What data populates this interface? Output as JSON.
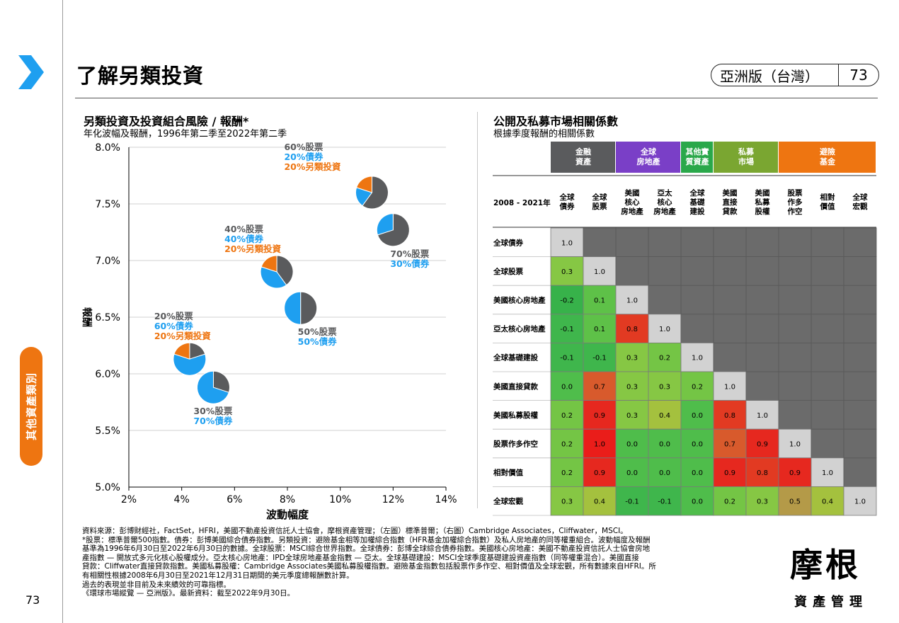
{
  "header": {
    "title": "了解另類投資",
    "edition": "亞洲版（台灣）",
    "page_number": "73"
  },
  "side_tab": {
    "label": "其他資產類別"
  },
  "footer": {
    "page_number": "73"
  },
  "left_section": {
    "title": "另類投資及投資組合風險 / 報酬*",
    "subtitle": "年化波幅及報酬，1996年第二季至2022年第二季"
  },
  "right_section": {
    "title": "公開及私募市場相關係數",
    "subtitle": "根據季度報酬的相關係數"
  },
  "colors": {
    "stock": "#5a5b5d",
    "bond": "#1e9ff0",
    "alt": "#ee7511",
    "accent": "#1e9ff0",
    "group_fin": "#5a5b5d",
    "group_re": "#7a3fc7",
    "group_other": "#2aa84a",
    "group_pm": "#7aa631",
    "group_hf": "#ee7511"
  },
  "chart_data": [
    {
      "type": "scatter",
      "xlabel": "波動幅度",
      "ylabel": "報酬",
      "xlim": [
        2,
        14
      ],
      "ylim": [
        5.0,
        8.0
      ],
      "x_ticks": [
        "2%",
        "4%",
        "6%",
        "8%",
        "10%",
        "12%",
        "14%"
      ],
      "y_ticks": [
        "5.0%",
        "5.5%",
        "6.0%",
        "6.5%",
        "7.0%",
        "7.5%",
        "8.0%"
      ],
      "grid": "horizontal",
      "points": [
        {
          "x": 11.2,
          "y": 7.6,
          "stock": 60,
          "bond": 20,
          "alt": 20,
          "labels": [
            "60%股票",
            "20%債券",
            "20%另類投資"
          ],
          "label_pos": "upper-left"
        },
        {
          "x": 12.0,
          "y": 7.27,
          "stock": 70,
          "bond": 30,
          "alt": 0,
          "labels": [
            "70%股票",
            "30%債券"
          ],
          "label_pos": "lower-right"
        },
        {
          "x": 7.6,
          "y": 6.9,
          "stock": 40,
          "bond": 40,
          "alt": 20,
          "labels": [
            "40%股票",
            "40%債券",
            "20%另類投資"
          ],
          "label_pos": "upper-left"
        },
        {
          "x": 8.5,
          "y": 6.58,
          "stock": 50,
          "bond": 50,
          "alt": 0,
          "labels": [
            "50%股票",
            "50%債券"
          ],
          "label_pos": "lower-right"
        },
        {
          "x": 4.3,
          "y": 6.13,
          "stock": 20,
          "bond": 60,
          "alt": 20,
          "labels": [
            "20%股票",
            "60%債券",
            "20%另類投資"
          ],
          "label_pos": "upper-left"
        },
        {
          "x": 5.2,
          "y": 5.88,
          "stock": 30,
          "bond": 70,
          "alt": 0,
          "labels": [
            "30%股票",
            "70%債券"
          ],
          "label_pos": "below"
        }
      ]
    },
    {
      "type": "heatmap",
      "period_label": "2008 - 2021年",
      "groups": [
        {
          "label": [
            "金融",
            "資產"
          ],
          "span": 2,
          "color": "#5a5b5d"
        },
        {
          "label": [
            "全球",
            "房地產"
          ],
          "span": 2,
          "color": "#7a3fc7"
        },
        {
          "label": [
            "其他實",
            "質資產"
          ],
          "span": 1,
          "color": "#2aa84a"
        },
        {
          "label": [
            "私募",
            "市場"
          ],
          "span": 2,
          "color": "#7aa631"
        },
        {
          "label": [
            "避險",
            "基金"
          ],
          "span": 3,
          "color": "#ee7511"
        }
      ],
      "col_labels": [
        [
          "全球",
          "債券"
        ],
        [
          "全球",
          "股票"
        ],
        [
          "美國",
          "核心",
          "房地產"
        ],
        [
          "亞太",
          "核心",
          "房地產"
        ],
        [
          "全球",
          "基礎",
          "建設"
        ],
        [
          "美國",
          "直接",
          "貸款"
        ],
        [
          "美國",
          "私募",
          "股權"
        ],
        [
          "股票",
          "作多",
          "作空"
        ],
        [
          "相對",
          "價值"
        ],
        [
          "全球",
          "宏觀"
        ]
      ],
      "row_labels": [
        "全球債券",
        "全球股票",
        "美國核心房地產",
        "亞太核心房地產",
        "全球基礎建設",
        "美國直接貸款",
        "美國私募股權",
        "股票作多作空",
        "相對價值",
        "全球宏觀"
      ],
      "values": [
        [
          "1.0"
        ],
        [
          "0.3",
          "1.0"
        ],
        [
          "-0.2",
          "0.1",
          "1.0"
        ],
        [
          "-0.1",
          "0.1",
          "0.8",
          "1.0"
        ],
        [
          "-0.1",
          "-0.1",
          "0.3",
          "0.2",
          "1.0"
        ],
        [
          "0.0",
          "0.7",
          "0.3",
          "0.3",
          "0.2",
          "1.0"
        ],
        [
          "0.2",
          "0.9",
          "0.3",
          "0.4",
          "0.0",
          "0.8",
          "1.0"
        ],
        [
          "0.2",
          "1.0",
          "0.0",
          "0.0",
          "0.0",
          "0.7",
          "0.9",
          "1.0"
        ],
        [
          "0.2",
          "0.9",
          "0.0",
          "0.0",
          "0.0",
          "0.9",
          "0.8",
          "0.9",
          "1.0"
        ],
        [
          "0.3",
          "0.4",
          "-0.1",
          "-0.1",
          "0.0",
          "0.2",
          "0.3",
          "0.5",
          "0.4",
          "1.0"
        ]
      ]
    }
  ],
  "notes": [
    "資料來源：彭博財經社，FactSet，HFRI，美國不動產投資信託人士協會，摩根資產管理；（左圖）標準普爾；（右圖）Cambridge Associates，Cliffwater，MSCI。",
    "*股票：標準普爾500指數。債券：彭博美國綜合債券指數。另類投資：避險基金相等加權綜合指數（HFR基金加權綜合指數）及私人房地產的同等權重組合。波動幅度及報酬",
    "基準為1996年6月30日至2022年6月30日的數據。全球股票：MSCI綜合世界指數。全球債券：彭博全球綜合債券指數。美國核心房地產：美國不動產投資信託人士協會房地",
    "產指數 — 開放式多元化核心股權成分。亞太核心房地產：IPD全球房地產基金指數 — 亞太。全球基礎建設：MSCI全球季度基礎建設資產指數（同等權重混合）。美國直接",
    "貸款：Cliffwater直接貸款指數。美國私募股權：Cambridge Associates美國私募股權指數。避險基金指數包括股票作多作空、相對價值及全球宏觀，所有數據來自HFRI。所",
    "有相關性根據2008年6月30日至2021年12月31日期間的美元季度總報酬數計算。",
    "過去的表現並非目前及未來績效的可靠指標。",
    "《環球市場縱覽 — 亞洲版》。最新資料：截至2022年9月30日。"
  ],
  "logo": {
    "top": "摩根",
    "bottom": "資產管理"
  }
}
